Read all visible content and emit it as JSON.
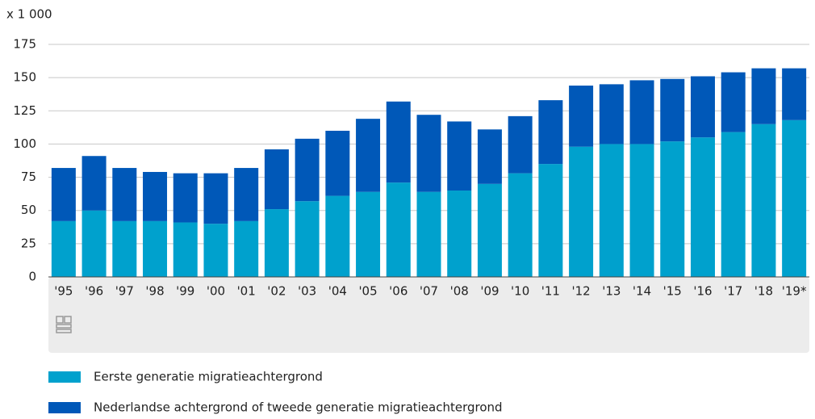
{
  "chart_data": {
    "type": "stacked-bar",
    "y_unit_label": "x 1 000",
    "categories": [
      "'95",
      "'96",
      "'97",
      "'98",
      "'99",
      "'00",
      "'01",
      "'02",
      "'03",
      "'04",
      "'05",
      "'06",
      "'07",
      "'08",
      "'09",
      "'10",
      "'11",
      "'12",
      "'13",
      "'14",
      "'15",
      "'16",
      "'17",
      "'18",
      "'19*"
    ],
    "series": [
      {
        "name": "Eerste generatie migratieachtergrond",
        "color": "#00a1cd",
        "values": [
          42,
          50,
          42,
          42,
          41,
          40,
          42,
          51,
          57,
          61,
          64,
          71,
          64,
          65,
          70,
          78,
          85,
          98,
          100,
          100,
          102,
          105,
          109,
          115,
          118
        ]
      },
      {
        "name": "Nederlandse achtergrond of tweede generatie migratieachtergrond",
        "color": "#0058b8",
        "values": [
          40,
          41,
          40,
          37,
          37,
          38,
          40,
          45,
          47,
          49,
          55,
          61,
          58,
          52,
          41,
          43,
          48,
          46,
          45,
          48,
          47,
          46,
          45,
          42,
          39
        ]
      }
    ],
    "ylim": [
      0,
      175
    ],
    "yticks": [
      0,
      25,
      50,
      75,
      100,
      125,
      150,
      175
    ],
    "grid": true
  }
}
